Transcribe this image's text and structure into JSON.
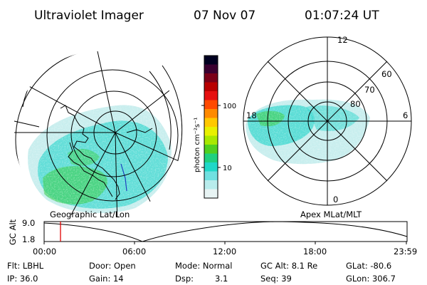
{
  "header": {
    "title": "Ultraviolet Imager",
    "date": "07 Nov 07",
    "time": "01:07:24 UT"
  },
  "left_map": {
    "caption": "Geographic Lat/Lon"
  },
  "right_map": {
    "caption": "Apex MLat/MLT",
    "mlt_labels": [
      "12",
      "18",
      "6",
      "0"
    ],
    "mlat_labels": [
      "60",
      "70",
      "80"
    ]
  },
  "colorbar": {
    "unit_label": "photon cm⁻²s⁻¹",
    "tick_labels": [
      "100",
      "10"
    ],
    "colors": [
      "#000020",
      "#3a0030",
      "#7a0018",
      "#b80000",
      "#e61010",
      "#ff4a00",
      "#ff8a00",
      "#ffc800",
      "#e8f000",
      "#a8e800",
      "#50d020",
      "#20d080",
      "#20d8c8",
      "#70e0e0",
      "#b8ecec",
      "#e8f4f4"
    ]
  },
  "timeline": {
    "axis_label": "GC Alt",
    "y_ticks": [
      "9.0",
      "1.8"
    ],
    "x_ticks": [
      "00:00",
      "06:00",
      "12:00",
      "18:00",
      "23:59"
    ],
    "marker_time": "01:07"
  },
  "info": {
    "filter": "Flt: LBHL",
    "ip": "IP: 36.0",
    "door": "Door: Open",
    "gain": "Gain: 14",
    "mode": "Mode: Normal",
    "dsp_label": "Dsp:",
    "dsp_value": "3.1",
    "gc_alt": "GC Alt: 8.1 Re",
    "seq": "Seq: 39",
    "glat": "GLat: -80.6",
    "glon": "GLon: 306.7"
  },
  "colors": {
    "aurora_cyan": "#40d8d0",
    "aurora_green": "#40d060",
    "aurora_pale": "#c8eeee",
    "marker": "#e00000"
  }
}
